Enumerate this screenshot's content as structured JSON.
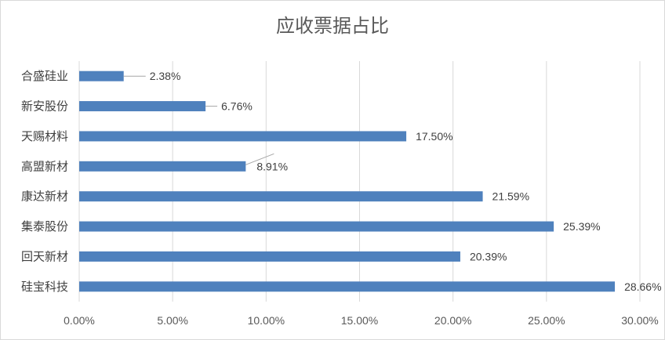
{
  "chart_data": {
    "type": "bar",
    "orientation": "horizontal",
    "title": "应收票据占比",
    "categories": [
      "合盛硅业",
      "新安股份",
      "天赐材料",
      "高盟新材",
      "康达新材",
      "集泰股份",
      "回天新材",
      "硅宝科技"
    ],
    "values": [
      2.38,
      6.76,
      17.5,
      8.91,
      21.59,
      25.39,
      20.39,
      28.66
    ],
    "value_labels": [
      "2.38%",
      "6.76%",
      "17.50%",
      "8.91%",
      "21.59%",
      "25.39%",
      "20.39%",
      "28.66%"
    ],
    "xlim": [
      0,
      30
    ],
    "x_ticks": [
      0,
      5,
      10,
      15,
      20,
      25,
      30
    ],
    "x_tick_labels": [
      "0.00%",
      "5.00%",
      "10.00%",
      "15.00%",
      "20.00%",
      "25.00%",
      "30.00%"
    ],
    "grid": "vertical",
    "legend": "none",
    "bar_color": "#4f81bd"
  }
}
